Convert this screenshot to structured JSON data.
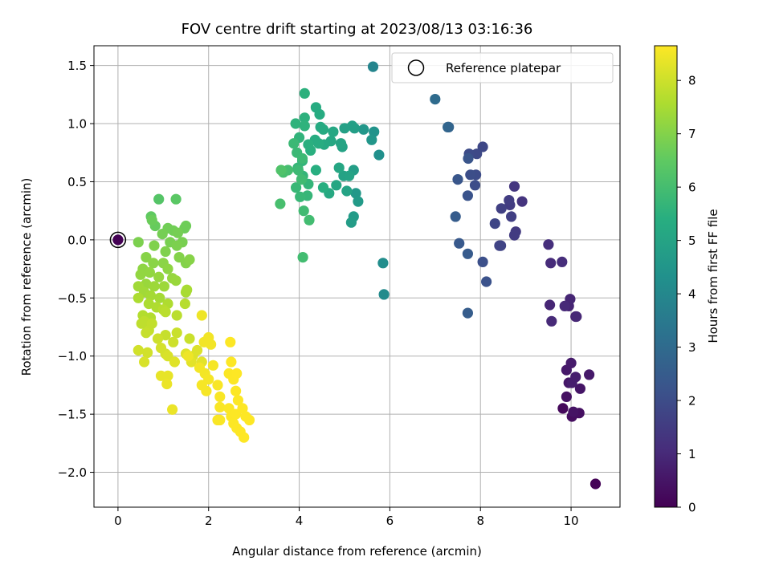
{
  "chart_data": {
    "type": "scatter",
    "title": "FOV centre drift starting at 2023/08/13 03:16:36",
    "xlabel": "Angular distance from reference (arcmin)",
    "ylabel": "Rotation from reference (arcmin)",
    "xlim": [
      -0.53,
      11.08
    ],
    "ylim": [
      -2.3,
      1.67
    ],
    "xticks": [
      0,
      2,
      4,
      6,
      8,
      10
    ],
    "yticks": [
      1.5,
      1.0,
      0.5,
      0.0,
      -0.5,
      -1.0,
      -1.5,
      -2.0
    ],
    "xtick_labels": [
      "0",
      "2",
      "4",
      "6",
      "8",
      "10"
    ],
    "ytick_labels": [
      "1.5",
      "1.0",
      "0.5",
      "0.0",
      "−0.5",
      "−1.0",
      "−1.5",
      "−2.0"
    ],
    "grid": true,
    "legend": {
      "placement": "top-right",
      "entries": [
        "Reference platepar"
      ]
    },
    "reference_point": {
      "x": 0.0,
      "y": 0.0
    },
    "colorbar": {
      "label": "Hours from first FF file",
      "range": [
        0,
        8.65
      ],
      "ticks": [
        0,
        1,
        2,
        3,
        4,
        5,
        6,
        7,
        8
      ],
      "tick_labels": [
        "0",
        "1",
        "2",
        "3",
        "4",
        "5",
        "6",
        "7",
        "8"
      ],
      "colormap": "viridis"
    },
    "points": [
      [
        10.54,
        -2.1,
        0.05
      ],
      [
        9.82,
        -1.45,
        0.2
      ],
      [
        10.02,
        -1.52,
        0.3
      ],
      [
        10.18,
        -1.49,
        0.35
      ],
      [
        9.9,
        -1.35,
        0.4
      ],
      [
        10.05,
        -1.48,
        0.45
      ],
      [
        10.2,
        -1.28,
        0.5
      ],
      [
        9.95,
        -1.23,
        0.55
      ],
      [
        10.4,
        -1.16,
        0.6
      ],
      [
        9.9,
        -1.12,
        0.6
      ],
      [
        10.0,
        -1.06,
        0.65
      ],
      [
        10.02,
        -1.23,
        0.7
      ],
      [
        10.1,
        -1.18,
        0.7
      ],
      [
        10.1,
        -0.66,
        0.8
      ],
      [
        9.95,
        -0.57,
        0.85
      ],
      [
        9.53,
        -0.56,
        0.9
      ],
      [
        9.98,
        -0.51,
        0.9
      ],
      [
        10.12,
        -0.66,
        0.95
      ],
      [
        9.86,
        -0.57,
        1.0
      ],
      [
        9.57,
        -0.7,
        1.0
      ],
      [
        9.55,
        -0.2,
        1.05
      ],
      [
        9.8,
        -0.19,
        1.1
      ],
      [
        9.5,
        -0.04,
        1.15
      ],
      [
        8.92,
        0.33,
        1.3
      ],
      [
        8.75,
        0.46,
        1.35
      ],
      [
        8.78,
        0.07,
        1.45
      ],
      [
        8.75,
        0.04,
        1.5
      ],
      [
        8.65,
        0.3,
        1.5
      ],
      [
        8.63,
        0.34,
        1.55
      ],
      [
        8.68,
        0.2,
        1.6
      ],
      [
        8.46,
        0.27,
        1.65
      ],
      [
        8.45,
        -0.05,
        1.7
      ],
      [
        8.42,
        -0.05,
        1.75
      ],
      [
        8.32,
        0.14,
        1.8
      ],
      [
        8.05,
        0.8,
        1.85
      ],
      [
        7.92,
        0.74,
        1.9
      ],
      [
        7.75,
        0.74,
        1.95
      ],
      [
        7.9,
        0.56,
        2.0
      ],
      [
        7.88,
        0.47,
        2.0
      ],
      [
        7.78,
        0.56,
        2.05
      ],
      [
        8.05,
        -0.19,
        2.1
      ],
      [
        8.13,
        -0.36,
        2.15
      ],
      [
        7.72,
        0.38,
        2.2
      ],
      [
        7.73,
        0.7,
        2.25
      ],
      [
        7.5,
        0.52,
        2.3
      ],
      [
        7.53,
        -0.03,
        2.4
      ],
      [
        7.72,
        -0.12,
        2.45
      ],
      [
        7.45,
        0.2,
        2.5
      ],
      [
        7.72,
        -0.63,
        2.55
      ],
      [
        7.3,
        0.97,
        2.7
      ],
      [
        7.28,
        0.97,
        2.8
      ],
      [
        7.0,
        1.21,
        3.0
      ],
      [
        5.63,
        1.49,
        3.9
      ],
      [
        5.87,
        -0.47,
        4.1
      ],
      [
        5.85,
        -0.2,
        4.2
      ],
      [
        5.76,
        0.73,
        4.3
      ],
      [
        5.65,
        0.93,
        4.4
      ],
      [
        5.6,
        0.86,
        4.5
      ],
      [
        5.42,
        0.95,
        4.55
      ],
      [
        5.25,
        0.4,
        4.6
      ],
      [
        5.3,
        0.33,
        4.65
      ],
      [
        5.2,
        0.2,
        4.7
      ],
      [
        5.15,
        0.15,
        4.75
      ],
      [
        5.2,
        0.6,
        4.8
      ],
      [
        5.22,
        0.96,
        4.8
      ],
      [
        5.17,
        0.98,
        4.85
      ],
      [
        5.0,
        0.96,
        4.9
      ],
      [
        4.95,
        0.8,
        4.95
      ],
      [
        4.98,
        0.55,
        4.95
      ],
      [
        5.1,
        0.55,
        5.0
      ],
      [
        5.05,
        0.42,
        5.0
      ],
      [
        4.92,
        0.83,
        5.05
      ],
      [
        4.88,
        0.62,
        5.1
      ],
      [
        4.82,
        0.47,
        5.1
      ],
      [
        4.75,
        0.93,
        5.15
      ],
      [
        4.7,
        0.85,
        5.15
      ],
      [
        4.66,
        0.4,
        5.2
      ],
      [
        4.55,
        0.82,
        5.2
      ],
      [
        4.47,
        0.97,
        5.25
      ],
      [
        4.53,
        0.95,
        5.25
      ],
      [
        4.37,
        1.14,
        5.3
      ],
      [
        4.45,
        1.08,
        5.3
      ],
      [
        4.35,
        0.86,
        5.35
      ],
      [
        4.43,
        0.83,
        5.35
      ],
      [
        4.37,
        0.6,
        5.4
      ],
      [
        4.53,
        0.45,
        5.4
      ],
      [
        4.2,
        0.82,
        5.45
      ],
      [
        4.25,
        0.77,
        5.45
      ],
      [
        4.12,
        1.26,
        5.5
      ],
      [
        4.12,
        1.05,
        5.5
      ],
      [
        4.12,
        0.98,
        5.55
      ],
      [
        3.92,
        1.0,
        5.55
      ],
      [
        4.0,
        0.88,
        5.6
      ],
      [
        4.07,
        0.68,
        5.6
      ],
      [
        4.08,
        0.55,
        5.65
      ],
      [
        4.2,
        0.48,
        5.65
      ],
      [
        4.18,
        0.38,
        5.7
      ],
      [
        3.97,
        0.62,
        5.7
      ],
      [
        3.93,
        0.45,
        5.75
      ],
      [
        4.02,
        0.37,
        5.75
      ],
      [
        3.88,
        0.83,
        5.8
      ],
      [
        3.95,
        0.75,
        5.8
      ],
      [
        4.07,
        0.7,
        5.85
      ],
      [
        3.98,
        0.6,
        5.85
      ],
      [
        4.05,
        0.52,
        5.9
      ],
      [
        4.1,
        0.25,
        5.9
      ],
      [
        4.22,
        0.17,
        5.95
      ],
      [
        4.08,
        -0.15,
        5.95
      ],
      [
        3.75,
        0.6,
        6.0
      ],
      [
        3.65,
        0.58,
        6.05
      ],
      [
        3.58,
        0.31,
        6.05
      ],
      [
        3.6,
        0.6,
        6.2
      ],
      [
        0.9,
        0.35,
        6.3
      ],
      [
        1.28,
        0.35,
        6.4
      ],
      [
        0.73,
        0.2,
        6.5
      ],
      [
        0.82,
        0.12,
        6.6
      ],
      [
        0.75,
        0.17,
        6.65
      ],
      [
        1.5,
        0.12,
        6.7
      ],
      [
        1.47,
        0.1,
        6.7
      ],
      [
        1.22,
        0.08,
        6.75
      ],
      [
        1.1,
        0.1,
        6.75
      ],
      [
        1.32,
        0.06,
        6.8
      ],
      [
        0.98,
        0.05,
        6.8
      ],
      [
        1.15,
        -0.02,
        6.85
      ],
      [
        1.42,
        -0.02,
        6.85
      ],
      [
        1.3,
        -0.05,
        6.9
      ],
      [
        0.45,
        -0.02,
        6.9
      ],
      [
        0.8,
        -0.05,
        6.95
      ],
      [
        1.05,
        -0.1,
        6.95
      ],
      [
        1.35,
        -0.15,
        7.0
      ],
      [
        1.5,
        -0.2,
        7.0
      ],
      [
        1.58,
        -0.17,
        7.05
      ],
      [
        0.62,
        -0.15,
        7.05
      ],
      [
        0.78,
        -0.2,
        7.1
      ],
      [
        1.0,
        -0.2,
        7.1
      ],
      [
        1.1,
        -0.25,
        7.15
      ],
      [
        0.55,
        -0.25,
        7.15
      ],
      [
        0.7,
        -0.28,
        7.2
      ],
      [
        0.5,
        -0.3,
        7.2
      ],
      [
        0.9,
        -0.32,
        7.25
      ],
      [
        1.2,
        -0.33,
        7.25
      ],
      [
        1.28,
        -0.35,
        7.3
      ],
      [
        0.62,
        -0.38,
        7.3
      ],
      [
        0.8,
        -0.4,
        7.35
      ],
      [
        1.02,
        -0.4,
        7.35
      ],
      [
        0.45,
        -0.4,
        7.4
      ],
      [
        0.58,
        -0.45,
        7.4
      ],
      [
        0.72,
        -0.48,
        7.45
      ],
      [
        0.92,
        -0.5,
        7.45
      ],
      [
        1.5,
        -0.45,
        7.5
      ],
      [
        1.52,
        -0.43,
        7.5
      ],
      [
        0.45,
        -0.5,
        7.55
      ],
      [
        0.68,
        -0.55,
        7.55
      ],
      [
        0.85,
        -0.58,
        7.6
      ],
      [
        1.1,
        -0.55,
        7.6
      ],
      [
        0.55,
        -0.65,
        7.65
      ],
      [
        0.72,
        -0.67,
        7.65
      ],
      [
        1.0,
        -0.6,
        7.7
      ],
      [
        1.48,
        -0.55,
        7.7
      ],
      [
        1.05,
        -0.62,
        7.75
      ],
      [
        1.3,
        -0.65,
        7.75
      ],
      [
        0.58,
        -0.7,
        7.8
      ],
      [
        0.52,
        -0.72,
        7.8
      ],
      [
        0.75,
        -0.72,
        7.85
      ],
      [
        0.68,
        -0.78,
        7.85
      ],
      [
        0.62,
        -0.8,
        7.9
      ],
      [
        1.05,
        -0.82,
        7.9
      ],
      [
        1.3,
        -0.8,
        7.95
      ],
      [
        1.58,
        -0.85,
        7.95
      ],
      [
        0.88,
        -0.85,
        8.0
      ],
      [
        1.22,
        -0.88,
        8.0
      ],
      [
        0.45,
        -0.95,
        8.05
      ],
      [
        0.65,
        -0.97,
        8.05
      ],
      [
        0.95,
        -0.93,
        8.1
      ],
      [
        1.05,
        -0.98,
        8.1
      ],
      [
        0.58,
        -1.05,
        8.15
      ],
      [
        1.1,
        -1.0,
        8.15
      ],
      [
        1.65,
        -1.0,
        8.2
      ],
      [
        1.75,
        -0.95,
        8.2
      ],
      [
        1.25,
        -1.05,
        8.25
      ],
      [
        1.5,
        -0.98,
        8.25
      ],
      [
        1.85,
        -1.05,
        8.3
      ],
      [
        1.62,
        -1.05,
        8.3
      ],
      [
        0.95,
        -1.17,
        8.35
      ],
      [
        1.1,
        -1.17,
        8.35
      ],
      [
        1.08,
        -1.24,
        8.4
      ],
      [
        1.2,
        -1.46,
        8.4
      ],
      [
        1.55,
        -1.0,
        8.45
      ],
      [
        1.85,
        -0.65,
        8.45
      ],
      [
        1.9,
        -0.88,
        8.5
      ],
      [
        2.05,
        -0.9,
        8.5
      ],
      [
        2.0,
        -0.84,
        8.5
      ],
      [
        1.8,
        -1.1,
        8.52
      ],
      [
        1.92,
        -1.15,
        8.52
      ],
      [
        2.1,
        -1.08,
        8.54
      ],
      [
        2.0,
        -1.2,
        8.54
      ],
      [
        1.85,
        -1.25,
        8.56
      ],
      [
        1.95,
        -1.3,
        8.56
      ],
      [
        2.2,
        -1.25,
        8.58
      ],
      [
        2.25,
        -1.35,
        8.58
      ],
      [
        2.2,
        -1.55,
        8.6
      ],
      [
        2.25,
        -1.44,
        8.6
      ],
      [
        2.25,
        -1.55,
        8.6
      ],
      [
        2.45,
        -1.45,
        8.62
      ],
      [
        2.5,
        -1.52,
        8.62
      ],
      [
        2.45,
        -1.15,
        8.62
      ],
      [
        2.48,
        -0.88,
        8.63
      ],
      [
        2.5,
        -1.05,
        8.63
      ],
      [
        2.55,
        -1.2,
        8.63
      ],
      [
        2.6,
        -1.3,
        8.64
      ],
      [
        2.65,
        -1.38,
        8.64
      ],
      [
        2.6,
        -1.5,
        8.64
      ],
      [
        2.55,
        -1.58,
        8.64
      ],
      [
        2.62,
        -1.62,
        8.65
      ],
      [
        2.7,
        -1.65,
        8.65
      ],
      [
        2.78,
        -1.7,
        8.65
      ],
      [
        2.75,
        -1.45,
        8.65
      ],
      [
        2.82,
        -1.52,
        8.65
      ],
      [
        2.9,
        -1.55,
        8.65
      ],
      [
        2.62,
        -1.15,
        8.65
      ]
    ]
  }
}
